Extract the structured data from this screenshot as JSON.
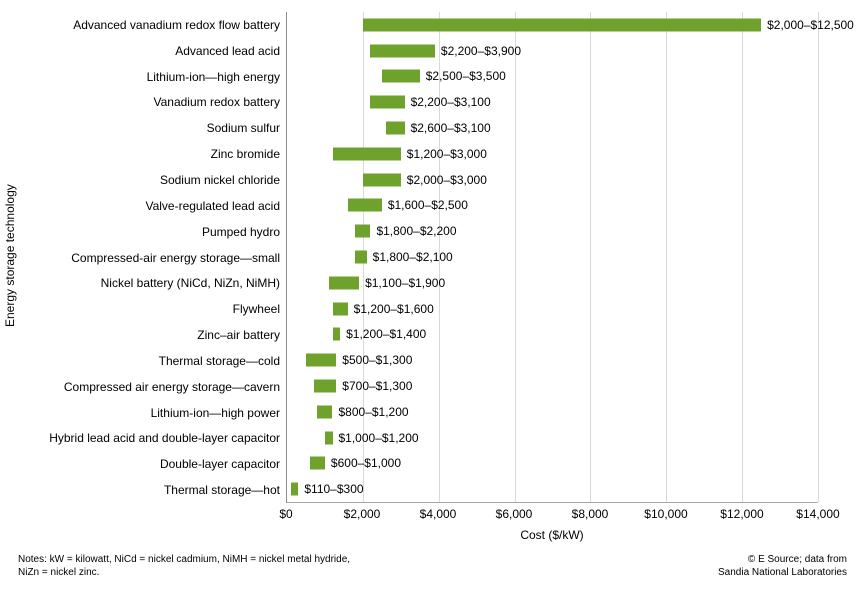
{
  "chart_data": {
    "type": "bar",
    "orientation": "horizontal",
    "xlabel": "Cost ($/kW)",
    "ylabel": "Energy storage technology",
    "xlim": [
      0,
      14000
    ],
    "grid": "vertical",
    "legend": "none",
    "bar_color": "#6FA22C",
    "gridline_color": "#D9D9D9",
    "xtick_values": [
      0,
      2000,
      4000,
      6000,
      8000,
      10000,
      12000,
      14000
    ],
    "xtick_labels": [
      "$0",
      "$2,000",
      "$4,000",
      "$6,000",
      "$8,000",
      "$10,000",
      "$12,000",
      "$14,000"
    ],
    "rows": [
      {
        "category": "Advanced vanadium redox flow battery",
        "min": 2000,
        "max": 12500,
        "label": "$2,000–$12,500"
      },
      {
        "category": "Advanced lead acid",
        "min": 2200,
        "max": 3900,
        "label": "$2,200–$3,900"
      },
      {
        "category": "Lithium-ion—high energy",
        "min": 2500,
        "max": 3500,
        "label": "$2,500–$3,500"
      },
      {
        "category": "Vanadium redox battery",
        "min": 2200,
        "max": 3100,
        "label": "$2,200–$3,100"
      },
      {
        "category": "Sodium sulfur",
        "min": 2600,
        "max": 3100,
        "label": "$2,600–$3,100"
      },
      {
        "category": "Zinc bromide",
        "min": 1200,
        "max": 3000,
        "label": "$1,200–$3,000"
      },
      {
        "category": "Sodium nickel chloride",
        "min": 2000,
        "max": 3000,
        "label": "$2,000–$3,000"
      },
      {
        "category": "Valve-regulated lead acid",
        "min": 1600,
        "max": 2500,
        "label": "$1,600–$2,500"
      },
      {
        "category": "Pumped hydro",
        "min": 1800,
        "max": 2200,
        "label": "$1,800–$2,200"
      },
      {
        "category": "Compressed-air energy storage—small",
        "min": 1800,
        "max": 2100,
        "label": "$1,800–$2,100"
      },
      {
        "category": "Nickel battery (NiCd, NiZn, NiMH)",
        "min": 1100,
        "max": 1900,
        "label": "$1,100–$1,900"
      },
      {
        "category": "Flywheel",
        "min": 1200,
        "max": 1600,
        "label": "$1,200–$1,600"
      },
      {
        "category": "Zinc–air battery",
        "min": 1200,
        "max": 1400,
        "label": "$1,200–$1,400"
      },
      {
        "category": "Thermal storage—cold",
        "min": 500,
        "max": 1300,
        "label": "$500–$1,300"
      },
      {
        "category": "Compressed air energy storage—cavern",
        "min": 700,
        "max": 1300,
        "label": "$700–$1,300"
      },
      {
        "category": "Lithium-ion—high power",
        "min": 800,
        "max": 1200,
        "label": "$800–$1,200"
      },
      {
        "category": "Hybrid lead acid and double-layer capacitor",
        "min": 1000,
        "max": 1200,
        "label": "$1,000–$1,200"
      },
      {
        "category": "Double-layer capacitor",
        "min": 600,
        "max": 1000,
        "label": "$600–$1,000"
      },
      {
        "category": "Thermal storage—hot",
        "min": 110,
        "max": 300,
        "label": "$110–$300"
      }
    ]
  },
  "footer": {
    "notes": "Notes: kW = kilowatt, NiCd = nickel cadmium, NiMH = nickel metal hydride,\nNiZn = nickel zinc.",
    "attribution": "© E Source; data from\nSandia National Laboratories"
  }
}
